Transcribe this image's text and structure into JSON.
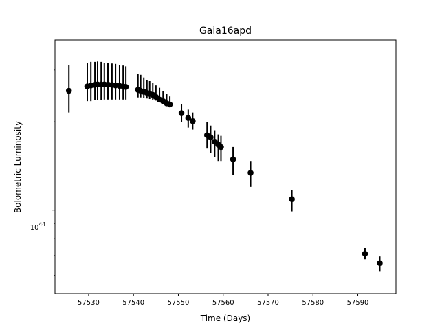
{
  "chart_data": {
    "type": "scatter",
    "title": "Gaia16apd",
    "xlabel": "Time (Days)",
    "ylabel": "Bolometric Luminosity",
    "xlim": [
      57522.5,
      57598.5
    ],
    "ylim": [
      5.2e+43,
      3.8e+44
    ],
    "yscale": "log",
    "xticks": [
      57530,
      57540,
      57550,
      57560,
      57570,
      57580,
      57590
    ],
    "xtick_labels": [
      "57530",
      "57540",
      "57550",
      "57560",
      "57570",
      "57580",
      "57590"
    ],
    "yticks": [
      1e+44
    ],
    "ytick_labels": [
      "10^44"
    ],
    "ytick_base": "10",
    "ytick_exp": "44",
    "marker_color": "#000000",
    "grid": false,
    "series": [
      {
        "x": [
          57525.6,
          57529.7,
          57530.5,
          57531.4,
          57532.0,
          57532.8,
          57533.5,
          57534.3,
          57535.2,
          57536.0,
          57536.9,
          57537.7,
          57538.3,
          57541.0,
          57541.6,
          57542.3,
          57543.0,
          57543.6,
          57544.3,
          57545.0,
          57545.8,
          57546.6,
          57547.4,
          57548.1,
          57550.7,
          57552.2,
          57553.2,
          57556.4,
          57557.2,
          57558.1,
          57558.9,
          57559.5,
          57562.2,
          57566.1,
          57575.3,
          57591.6,
          57594.9
        ],
        "y": [
          2.55e+44,
          2.64e+44,
          2.66e+44,
          2.67e+44,
          2.68e+44,
          2.68e+44,
          2.68e+44,
          2.68e+44,
          2.67e+44,
          2.66e+44,
          2.65e+44,
          2.64e+44,
          2.63e+44,
          2.57e+44,
          2.55e+44,
          2.53e+44,
          2.51e+44,
          2.49e+44,
          2.47e+44,
          2.43e+44,
          2.38e+44,
          2.35e+44,
          2.31e+44,
          2.29e+44,
          2.14e+44,
          2.06e+44,
          2.01e+44,
          1.8e+44,
          1.77e+44,
          1.71e+44,
          1.67e+44,
          1.64e+44,
          1.49e+44,
          1.34e+44,
          1.09e+44,
          7.1e+43,
          6.6e+43
        ],
        "yerr_low": [
          2.15e+44,
          2.35e+44,
          2.35e+44,
          2.37e+44,
          2.37e+44,
          2.37e+44,
          2.38e+44,
          2.38e+44,
          2.38e+44,
          2.38e+44,
          2.38e+44,
          2.38e+44,
          2.38e+44,
          2.42e+44,
          2.42e+44,
          2.41e+44,
          2.4e+44,
          2.39e+44,
          2.37e+44,
          2.36e+44,
          2.34e+44,
          2.31e+44,
          2.29e+44,
          2.27e+44,
          1.99e+44,
          1.91e+44,
          1.88e+44,
          1.62e+44,
          1.57e+44,
          1.52e+44,
          1.47e+44,
          1.47e+44,
          1.32e+44,
          1.2e+44,
          9.9e+43,
          6.8e+43,
          6.2e+43
        ],
        "yerr_high": [
          3.12e+44,
          3.18e+44,
          3.2e+44,
          3.2e+44,
          3.21e+44,
          3.2e+44,
          3.18e+44,
          3.17e+44,
          3.16e+44,
          3.15e+44,
          3.13e+44,
          3.11e+44,
          3.09e+44,
          2.91e+44,
          2.89e+44,
          2.83e+44,
          2.78e+44,
          2.75e+44,
          2.72e+44,
          2.66e+44,
          2.61e+44,
          2.55e+44,
          2.49e+44,
          2.44e+44,
          2.29e+44,
          2.2e+44,
          2.15e+44,
          2e+44,
          1.94e+44,
          1.87e+44,
          1.81e+44,
          1.79e+44,
          1.64e+44,
          1.47e+44,
          1.17e+44,
          7.45e+43,
          6.95e+43
        ]
      }
    ]
  }
}
